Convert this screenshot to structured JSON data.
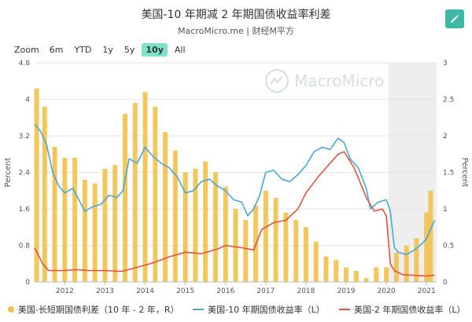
{
  "header": {
    "title": "美国-10 年期减 2 年期国债收益率利差",
    "subtitle": "MacroMicro.me | 财经M平方"
  },
  "zoom": {
    "label": "Zoom",
    "options": [
      "6m",
      "YTD",
      "1y",
      "5y",
      "10y",
      "All"
    ],
    "selected": "10y"
  },
  "watermark": "MacroMicro",
  "colors": {
    "spread": "#f3c14b",
    "ten_year": "#4aa8d8",
    "two_year": "#e0553b",
    "accent": "#3fb9a7",
    "zoom_active": "#7ee3c8"
  },
  "chart_data": {
    "type": "bar+line",
    "x_range": [
      2011.25,
      2021.25
    ],
    "x_ticks": [
      "2012",
      "2013",
      "2014",
      "2015",
      "2016",
      "2017",
      "2018",
      "2019",
      "2020",
      "2021"
    ],
    "left_axis": {
      "label": "Percent",
      "range": [
        0,
        4.8
      ],
      "ticks": [
        "0",
        "0.8",
        "1.6",
        "2.4",
        "3.2",
        "4",
        "4.8"
      ]
    },
    "right_axis": {
      "label": "Percent",
      "range": [
        0,
        3
      ],
      "ticks": [
        "0",
        "0.5",
        "1",
        "1.5",
        "2",
        "2.5",
        "3"
      ]
    },
    "shaded_region": [
      2020.05,
      2021.25
    ],
    "series": [
      {
        "name": "美国-长短期国债利差（10 年 - 2 年，R）",
        "kind": "bar",
        "axis": "right",
        "x": [
          2011.3,
          2011.5,
          2011.75,
          2012.0,
          2012.25,
          2012.5,
          2012.75,
          2013.0,
          2013.25,
          2013.5,
          2013.75,
          2014.0,
          2014.25,
          2014.5,
          2014.75,
          2015.0,
          2015.25,
          2015.5,
          2015.75,
          2016.0,
          2016.25,
          2016.5,
          2016.75,
          2017.0,
          2017.25,
          2017.5,
          2017.75,
          2018.0,
          2018.25,
          2018.5,
          2018.75,
          2019.0,
          2019.25,
          2019.5,
          2019.75,
          2020.0,
          2020.25,
          2020.5,
          2020.75,
          2021.0,
          2021.1
        ],
        "values": [
          2.65,
          2.4,
          1.85,
          1.7,
          1.7,
          1.4,
          1.35,
          1.55,
          1.6,
          2.3,
          2.45,
          2.6,
          2.4,
          2.05,
          1.8,
          1.5,
          1.55,
          1.65,
          1.5,
          1.3,
          1.0,
          0.85,
          1.05,
          1.25,
          1.15,
          0.95,
          0.85,
          0.75,
          0.55,
          0.35,
          0.3,
          0.2,
          0.15,
          0.05,
          0.2,
          0.2,
          0.4,
          0.5,
          0.6,
          0.95,
          1.25
        ]
      },
      {
        "name": "美国-10 年期国债收益率（L）",
        "kind": "line",
        "axis": "left",
        "x": [
          2011.25,
          2011.4,
          2011.55,
          2011.7,
          2011.85,
          2012.0,
          2012.2,
          2012.35,
          2012.5,
          2012.7,
          2012.9,
          2013.1,
          2013.3,
          2013.45,
          2013.6,
          2013.8,
          2014.0,
          2014.2,
          2014.4,
          2014.6,
          2014.8,
          2015.0,
          2015.2,
          2015.4,
          2015.6,
          2015.8,
          2016.0,
          2016.2,
          2016.4,
          2016.55,
          2016.7,
          2016.85,
          2017.0,
          2017.2,
          2017.4,
          2017.6,
          2017.8,
          2018.0,
          2018.2,
          2018.4,
          2018.6,
          2018.8,
          2018.95,
          2019.1,
          2019.3,
          2019.5,
          2019.6,
          2019.8,
          2020.0,
          2020.1,
          2020.2,
          2020.3,
          2020.5,
          2020.7,
          2020.9,
          2021.0,
          2021.1,
          2021.2
        ],
        "values": [
          3.45,
          3.3,
          3.0,
          2.4,
          2.1,
          1.95,
          2.05,
          1.8,
          1.55,
          1.65,
          1.7,
          1.9,
          1.85,
          2.0,
          2.7,
          2.6,
          2.95,
          2.75,
          2.6,
          2.5,
          2.3,
          1.95,
          2.0,
          2.2,
          2.25,
          2.1,
          2.0,
          1.8,
          1.75,
          1.45,
          1.6,
          1.9,
          2.4,
          2.45,
          2.25,
          2.2,
          2.35,
          2.55,
          2.85,
          2.95,
          2.9,
          3.15,
          3.05,
          2.7,
          2.5,
          2.05,
          1.6,
          1.75,
          1.8,
          1.55,
          0.75,
          0.65,
          0.6,
          0.7,
          0.85,
          0.95,
          1.15,
          1.35
        ]
      },
      {
        "name": "美国-2 年期国债收益率（L）",
        "kind": "line",
        "axis": "left",
        "x": [
          2011.25,
          2011.45,
          2011.6,
          2011.8,
          2012.0,
          2012.3,
          2012.6,
          2013.0,
          2013.4,
          2013.8,
          2014.2,
          2014.6,
          2015.0,
          2015.4,
          2015.8,
          2016.0,
          2016.4,
          2016.7,
          2016.9,
          2017.2,
          2017.5,
          2017.8,
          2018.0,
          2018.3,
          2018.6,
          2018.8,
          2018.95,
          2019.2,
          2019.5,
          2019.7,
          2019.9,
          2020.0,
          2020.1,
          2020.2,
          2020.4,
          2020.8,
          2021.0,
          2021.2
        ],
        "values": [
          0.75,
          0.4,
          0.25,
          0.25,
          0.25,
          0.27,
          0.25,
          0.25,
          0.23,
          0.32,
          0.42,
          0.55,
          0.65,
          0.62,
          0.72,
          0.8,
          0.75,
          0.7,
          1.15,
          1.3,
          1.35,
          1.6,
          1.95,
          2.3,
          2.6,
          2.8,
          2.85,
          2.5,
          1.85,
          1.55,
          1.6,
          1.45,
          0.4,
          0.25,
          0.16,
          0.14,
          0.13,
          0.15
        ]
      }
    ],
    "legend_position": "bottom"
  }
}
